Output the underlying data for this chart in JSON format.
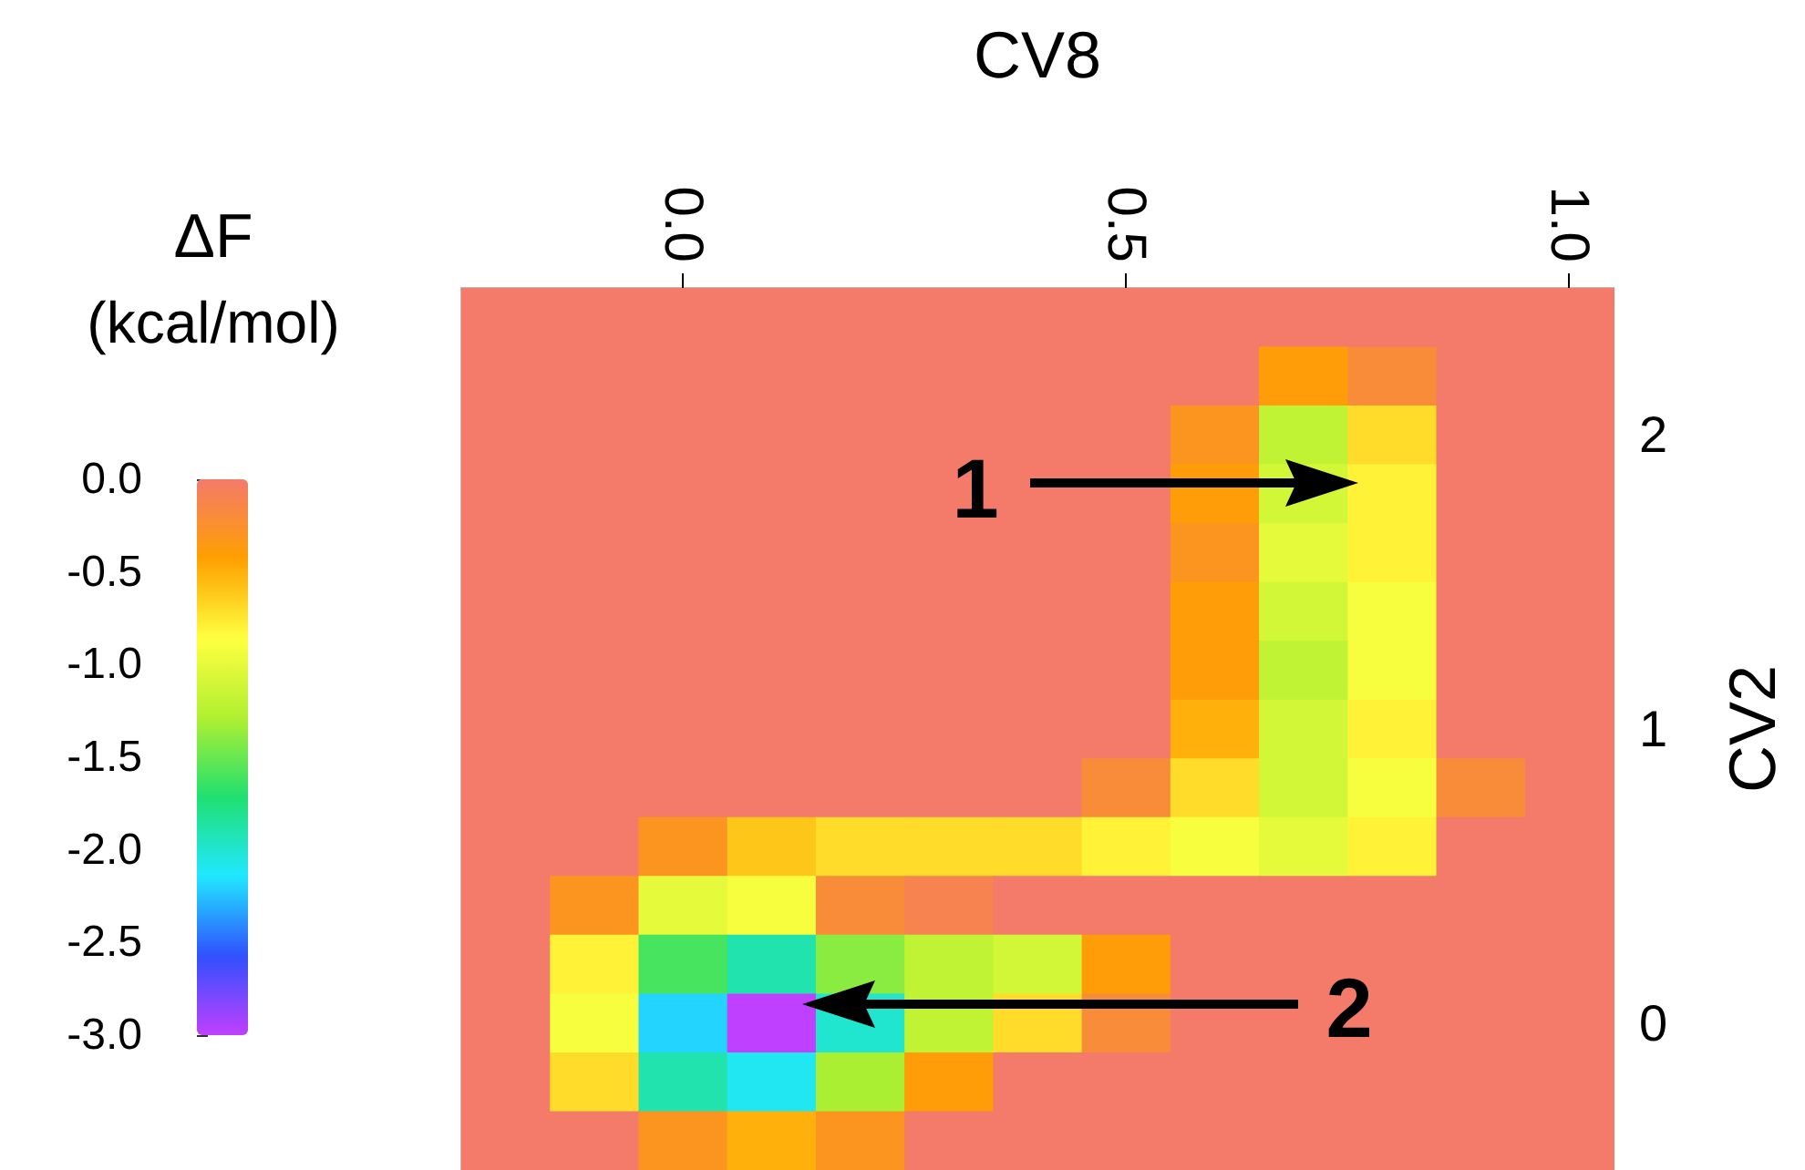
{
  "chart_data": {
    "type": "heatmap",
    "xlabel": "CV8",
    "ylabel": "CV2",
    "clabel": "ΔF (kcal/mol)",
    "x": [
      -0.2,
      -0.1,
      0.0,
      0.1,
      0.2,
      0.3,
      0.4,
      0.5,
      0.6,
      0.7,
      0.8,
      0.9,
      1.0
    ],
    "y": [
      2.4,
      2.2,
      2.0,
      1.8,
      1.6,
      1.4,
      1.2,
      1.0,
      0.8,
      0.6,
      0.4,
      0.2,
      0.0,
      -0.2,
      -0.4
    ],
    "cells": [
      [
        0,
        0,
        0,
        0,
        0,
        0,
        0,
        0,
        0,
        0,
        0,
        0,
        0
      ],
      [
        0,
        0,
        0,
        0,
        0,
        0,
        0,
        0,
        0,
        -0.4,
        -0.2,
        0,
        0
      ],
      [
        0,
        0,
        0,
        0,
        0,
        0,
        0,
        0,
        -0.3,
        -1.2,
        -0.7,
        0,
        0
      ],
      [
        0,
        0,
        0,
        0,
        0,
        0,
        0,
        0,
        -0.4,
        -1.1,
        -0.8,
        0,
        0
      ],
      [
        0,
        0,
        0,
        0,
        0,
        0,
        0,
        0,
        -0.3,
        -1.0,
        -0.8,
        0,
        0
      ],
      [
        0,
        0,
        0,
        0,
        0,
        0,
        0,
        0,
        -0.4,
        -1.1,
        -0.9,
        0,
        0
      ],
      [
        0,
        0,
        0,
        0,
        0,
        0,
        0,
        0,
        -0.4,
        -1.2,
        -0.9,
        0,
        0
      ],
      [
        0,
        0,
        0,
        0,
        0,
        0,
        0,
        0,
        -0.5,
        -1.1,
        -0.8,
        0,
        0
      ],
      [
        0,
        0,
        0,
        0,
        0,
        0,
        0,
        -0.2,
        -0.7,
        -1.1,
        -0.9,
        -0.2,
        0
      ],
      [
        0,
        0,
        -0.3,
        -0.6,
        -0.7,
        -0.7,
        -0.7,
        -0.8,
        -0.9,
        -1.0,
        -0.8,
        0,
        0
      ],
      [
        0,
        -0.3,
        -1.0,
        -0.9,
        -0.2,
        -0.1,
        0,
        0,
        0,
        0,
        0,
        0,
        0
      ],
      [
        0,
        -0.8,
        -1.6,
        -1.9,
        -1.4,
        -1.2,
        -1.1,
        -0.4,
        0,
        0,
        0,
        0,
        0
      ],
      [
        0,
        -0.9,
        -2.2,
        -3.0,
        -2.0,
        -1.2,
        -0.7,
        -0.2,
        0,
        0,
        0,
        0,
        0
      ],
      [
        0,
        -0.7,
        -1.9,
        -2.1,
        -1.3,
        -0.4,
        0,
        0,
        0,
        0,
        0,
        0,
        0
      ],
      [
        0,
        0,
        -0.3,
        -0.5,
        -0.3,
        0,
        0,
        0,
        0,
        0,
        0,
        0,
        0
      ]
    ],
    "xlim": [
      -0.25,
      1.05
    ],
    "ylim": [
      -0.5,
      2.5
    ],
    "xticks": [
      {
        "value": 0,
        "label": "0.0"
      },
      0.5,
      {
        "value": 1,
        "label": "1.0"
      }
    ],
    "yticks": [
      0,
      1,
      2
    ],
    "clim": [
      -3,
      0
    ],
    "cticks": [
      {
        "value": 0,
        "label": "0.0"
      },
      -0.5,
      {
        "value": -1,
        "label": "-1.0"
      },
      -1.5,
      {
        "value": -2,
        "label": "-2.0"
      },
      -2.5,
      {
        "value": -3,
        "label": "-3.0"
      }
    ],
    "annotations": [
      "1",
      "2"
    ]
  }
}
